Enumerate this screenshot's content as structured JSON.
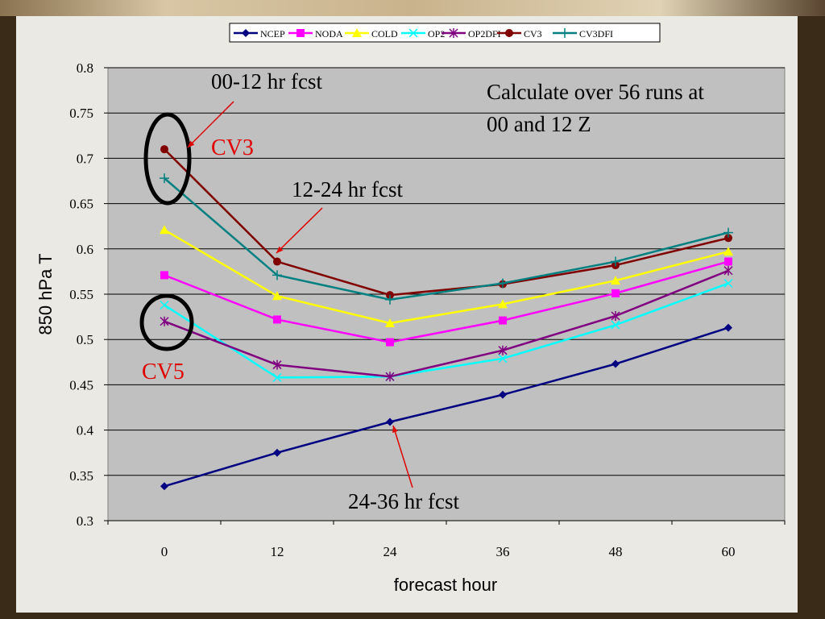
{
  "chart_data": {
    "type": "line",
    "categories": [
      "0",
      "12",
      "24",
      "36",
      "48",
      "60"
    ],
    "x": [
      0,
      12,
      24,
      36,
      48,
      60
    ],
    "xlabel": "forecast hour",
    "ylabel": "850 hPa T",
    "ylim": [
      0.3,
      0.8
    ],
    "yticks": [
      "0.3",
      "0.35",
      "0.4",
      "0.45",
      "0.5",
      "0.55",
      "0.6",
      "0.65",
      "0.7",
      "0.75",
      "0.8"
    ],
    "grid": true,
    "legend_position": "top",
    "series": [
      {
        "name": "NCEP",
        "color": "#000080",
        "marker": "diamond",
        "values": [
          0.338,
          0.375,
          0.409,
          0.439,
          0.473,
          0.513
        ]
      },
      {
        "name": "NODA",
        "color": "#ff00ff",
        "marker": "square",
        "values": [
          0.571,
          0.522,
          0.497,
          0.521,
          0.551,
          0.586
        ]
      },
      {
        "name": "COLD",
        "color": "#ffff00",
        "marker": "triangle",
        "values": [
          0.621,
          0.548,
          0.518,
          0.539,
          0.565,
          0.597
        ]
      },
      {
        "name": "OP2",
        "color": "#00ffff",
        "marker": "x",
        "values": [
          0.538,
          0.458,
          0.459,
          0.479,
          0.516,
          0.562
        ]
      },
      {
        "name": "OP2DFI",
        "color": "#800080",
        "marker": "star",
        "values": [
          0.52,
          0.472,
          0.459,
          0.488,
          0.526,
          0.576
        ]
      },
      {
        "name": "CV3",
        "color": "#800000",
        "marker": "circle",
        "values": [
          0.71,
          0.586,
          0.549,
          0.561,
          0.582,
          0.612
        ]
      },
      {
        "name": "CV3DFI",
        "color": "#008080",
        "marker": "plus",
        "values": [
          0.678,
          0.571,
          0.544,
          0.562,
          0.586,
          0.618
        ]
      }
    ],
    "annotations": {
      "a1": "00-12 hr fcst",
      "a2": "12-24 hr fcst",
      "a3": "24-36 hr fcst",
      "cv3": "CV3",
      "cv5": "CV5",
      "note1": "Calculate over 56 runs at",
      "note2": "00 and 12 Z"
    }
  }
}
